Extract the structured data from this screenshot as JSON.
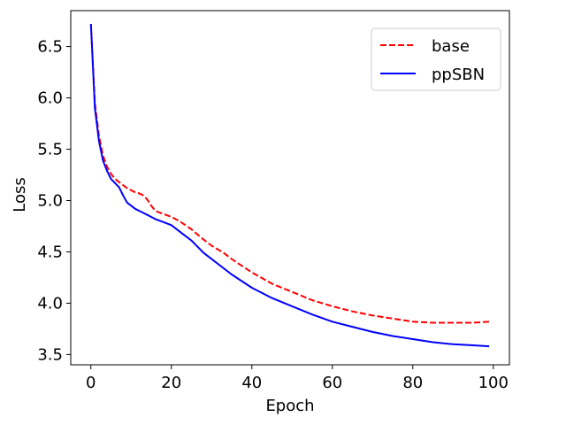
{
  "chart_data": {
    "type": "line",
    "title": "",
    "xlabel": "Epoch",
    "ylabel": "Loss",
    "xlim": [
      -5,
      104
    ],
    "ylim": [
      3.4,
      6.85
    ],
    "xticks": [
      0,
      20,
      40,
      60,
      80,
      100
    ],
    "xtick_labels": [
      "0",
      "20",
      "40",
      "60",
      "80",
      "100"
    ],
    "yticks": [
      3.5,
      4.0,
      4.5,
      5.0,
      5.5,
      6.0,
      6.5
    ],
    "ytick_labels": [
      "3.5",
      "4.0",
      "4.5",
      "5.0",
      "5.5",
      "6.0",
      "6.5"
    ],
    "grid": false,
    "legend_position": "top-right",
    "series": [
      {
        "name": "base",
        "color": "#ff0000",
        "style": "dashed",
        "x": [
          0,
          1,
          2,
          3,
          4,
          5,
          6,
          7,
          8,
          9,
          10,
          11,
          12,
          13,
          14,
          15,
          16,
          18,
          20,
          22,
          25,
          28,
          30,
          33,
          35,
          40,
          45,
          50,
          55,
          60,
          65,
          70,
          75,
          80,
          85,
          90,
          95,
          99
        ],
        "y": [
          6.72,
          5.95,
          5.63,
          5.44,
          5.33,
          5.26,
          5.21,
          5.18,
          5.15,
          5.12,
          5.1,
          5.08,
          5.07,
          5.05,
          5.01,
          4.95,
          4.9,
          4.87,
          4.84,
          4.8,
          4.72,
          4.62,
          4.56,
          4.49,
          4.43,
          4.3,
          4.19,
          4.11,
          4.03,
          3.97,
          3.92,
          3.88,
          3.85,
          3.82,
          3.81,
          3.81,
          3.81,
          3.82
        ]
      },
      {
        "name": "ppSBN",
        "color": "#0000ff",
        "style": "solid",
        "x": [
          0,
          1,
          2,
          3,
          4,
          5,
          6,
          7,
          8,
          9,
          10,
          11,
          12,
          13,
          14,
          15,
          16,
          18,
          20,
          22,
          25,
          28,
          30,
          33,
          35,
          40,
          45,
          50,
          55,
          60,
          65,
          70,
          75,
          80,
          85,
          90,
          95,
          99
        ],
        "y": [
          6.72,
          5.9,
          5.58,
          5.39,
          5.29,
          5.21,
          5.17,
          5.13,
          5.05,
          4.98,
          4.95,
          4.92,
          4.9,
          4.88,
          4.86,
          4.84,
          4.82,
          4.79,
          4.76,
          4.7,
          4.61,
          4.49,
          4.43,
          4.34,
          4.28,
          4.15,
          4.05,
          3.97,
          3.89,
          3.82,
          3.77,
          3.72,
          3.68,
          3.65,
          3.62,
          3.6,
          3.59,
          3.58
        ]
      }
    ]
  }
}
